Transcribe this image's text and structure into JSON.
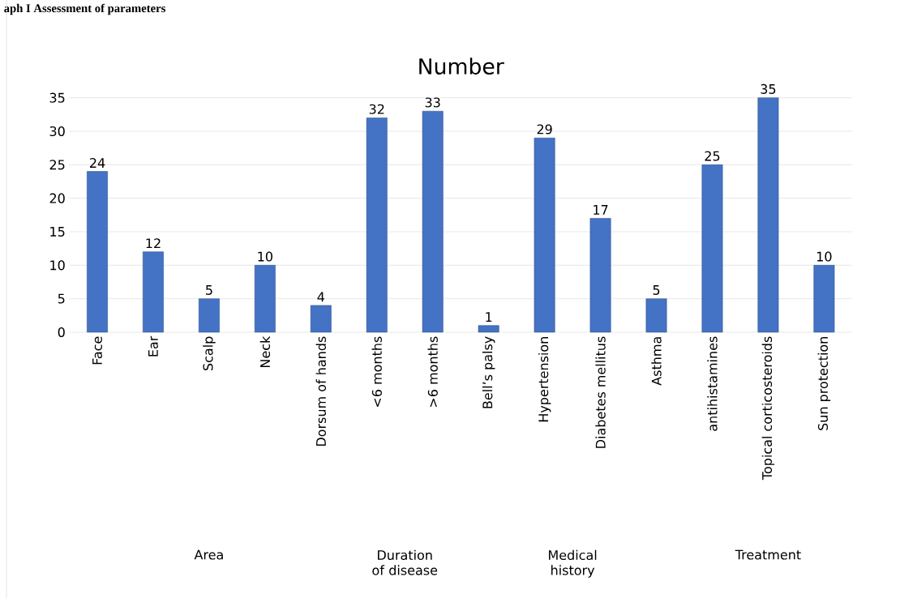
{
  "chart_data": {
    "type": "bar",
    "title": "Number",
    "categories": [
      "Face",
      "Ear",
      "Scalp",
      "Neck",
      "Dorsum of hands",
      "<6 months",
      ">6 months",
      "Bell’s palsy",
      "Hypertension",
      "Diabetes mellitus",
      "Asthma",
      "antihistamines",
      "Topical corticosteroids",
      "Sun protection"
    ],
    "values": [
      24,
      12,
      5,
      10,
      4,
      32,
      33,
      1,
      29,
      17,
      5,
      25,
      35,
      10
    ],
    "color": "#4472c4",
    "ylim": [
      0,
      35
    ],
    "yticks": [
      0,
      5,
      10,
      15,
      20,
      25,
      30,
      35
    ],
    "grid": "y",
    "data_labels": true,
    "annotations": [
      "aph I Assessment of parameters",
      "Area",
      "Duration of disease",
      "Medical history",
      "Treatment"
    ]
  }
}
